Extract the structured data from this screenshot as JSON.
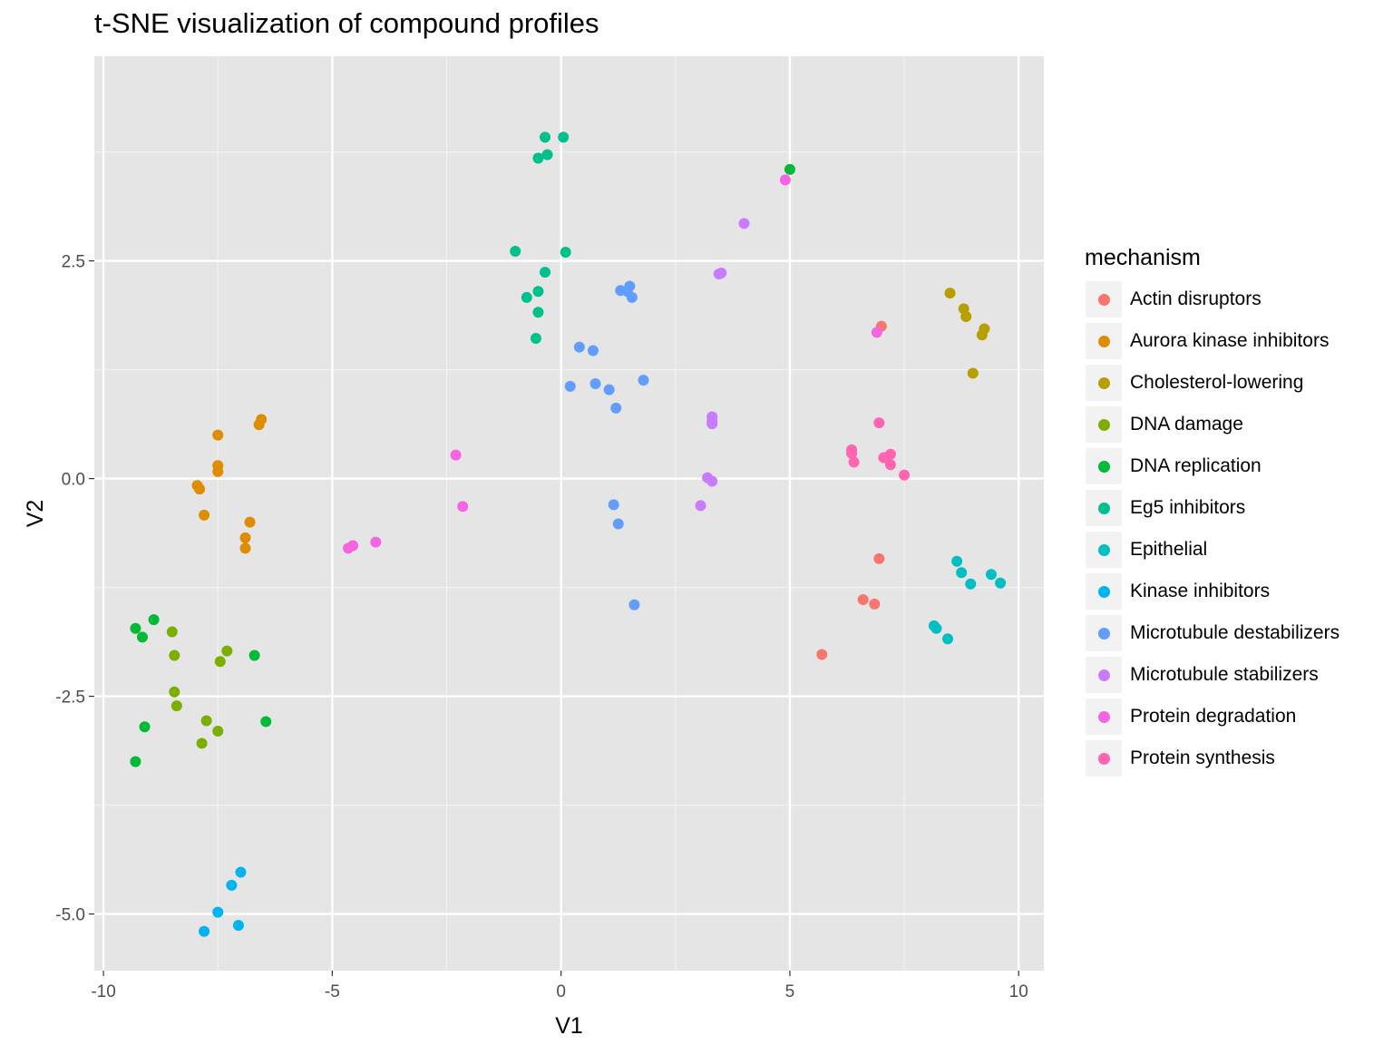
{
  "chart_data": {
    "type": "scatter",
    "title": "t-SNE visualization of compound profiles",
    "xlabel": "V1",
    "ylabel": "V2",
    "xlim": [
      -10.2,
      10.55
    ],
    "ylim": [
      -5.65,
      4.85
    ],
    "x_ticks": [
      -10,
      -5,
      0,
      5,
      10
    ],
    "x_tick_labels": [
      "-10",
      "-5",
      "0",
      "5",
      "10"
    ],
    "y_ticks": [
      -5.0,
      -2.5,
      0.0,
      2.5
    ],
    "y_tick_labels": [
      "-5.0",
      "-2.5",
      "0.0",
      "2.5"
    ],
    "grid": true,
    "legend_title": "mechanism",
    "legend_position": "right",
    "series": [
      {
        "name": "Actin disruptors",
        "color": "#F8766D",
        "points": [
          [
            7.0,
            1.75
          ],
          [
            6.95,
            -0.92
          ],
          [
            6.6,
            -1.39
          ],
          [
            6.85,
            -1.44
          ],
          [
            5.7,
            -2.02
          ]
        ]
      },
      {
        "name": "Aurora kinase inhibitors",
        "color": "#DE8C00",
        "points": [
          [
            -6.55,
            0.68
          ],
          [
            -6.6,
            0.62
          ],
          [
            -7.5,
            0.5
          ],
          [
            -7.5,
            0.15
          ],
          [
            -7.5,
            0.08
          ],
          [
            -7.95,
            -0.08
          ],
          [
            -7.9,
            -0.12
          ],
          [
            -7.8,
            -0.42
          ],
          [
            -6.8,
            -0.5
          ],
          [
            -6.9,
            -0.68
          ],
          [
            -6.9,
            -0.8
          ]
        ]
      },
      {
        "name": "Cholesterol-lowering",
        "color": "#B79F00",
        "points": [
          [
            8.5,
            2.13
          ],
          [
            8.8,
            1.95
          ],
          [
            8.85,
            1.86
          ],
          [
            9.25,
            1.72
          ],
          [
            9.2,
            1.65
          ],
          [
            9.0,
            1.21
          ]
        ]
      },
      {
        "name": "DNA damage",
        "color": "#7CAE00",
        "points": [
          [
            -8.5,
            -1.76
          ],
          [
            -8.45,
            -2.03
          ],
          [
            -7.3,
            -1.98
          ],
          [
            -7.45,
            -2.1
          ],
          [
            -8.45,
            -2.45
          ],
          [
            -8.4,
            -2.61
          ],
          [
            -7.75,
            -2.78
          ],
          [
            -7.5,
            -2.9
          ],
          [
            -7.85,
            -3.04
          ]
        ]
      },
      {
        "name": "DNA replication",
        "color": "#00BA38",
        "points": [
          [
            5.0,
            3.55
          ],
          [
            -9.3,
            -1.72
          ],
          [
            -9.15,
            -1.82
          ],
          [
            -8.9,
            -1.62
          ],
          [
            -6.7,
            -2.03
          ],
          [
            -9.1,
            -2.85
          ],
          [
            -6.45,
            -2.79
          ],
          [
            -9.3,
            -3.25
          ]
        ]
      },
      {
        "name": "Eg5 inhibitors",
        "color": "#00C08B",
        "points": [
          [
            -0.35,
            3.92
          ],
          [
            0.05,
            3.92
          ],
          [
            -0.3,
            3.72
          ],
          [
            -0.5,
            3.68
          ],
          [
            -1.0,
            2.61
          ],
          [
            0.1,
            2.6
          ],
          [
            -0.35,
            2.37
          ],
          [
            -0.5,
            2.15
          ],
          [
            -0.75,
            2.08
          ],
          [
            -0.5,
            1.91
          ],
          [
            -0.55,
            1.61
          ]
        ]
      },
      {
        "name": "Epithelial",
        "color": "#00BFC4",
        "points": [
          [
            8.65,
            -0.95
          ],
          [
            8.75,
            -1.08
          ],
          [
            9.4,
            -1.1
          ],
          [
            9.6,
            -1.2
          ],
          [
            8.95,
            -1.21
          ],
          [
            8.15,
            -1.69
          ],
          [
            8.2,
            -1.72
          ],
          [
            8.45,
            -1.84
          ]
        ]
      },
      {
        "name": "Kinase inhibitors",
        "color": "#00B4F0",
        "points": [
          [
            -7.0,
            -4.52
          ],
          [
            -7.2,
            -4.67
          ],
          [
            -7.5,
            -4.98
          ],
          [
            -7.05,
            -5.13
          ],
          [
            -7.8,
            -5.2
          ]
        ]
      },
      {
        "name": "Microtubule destabilizers",
        "color": "#619CFF",
        "points": [
          [
            1.5,
            2.21
          ],
          [
            1.3,
            2.16
          ],
          [
            1.45,
            2.15
          ],
          [
            1.55,
            2.08
          ],
          [
            0.4,
            1.51
          ],
          [
            0.7,
            1.47
          ],
          [
            1.8,
            1.13
          ],
          [
            0.2,
            1.06
          ],
          [
            0.75,
            1.09
          ],
          [
            1.05,
            1.02
          ],
          [
            1.2,
            0.81
          ],
          [
            1.15,
            -0.3
          ],
          [
            1.25,
            -0.52
          ],
          [
            1.6,
            -1.45
          ]
        ]
      },
      {
        "name": "Microtubule stabilizers",
        "color": "#C77CFF",
        "points": [
          [
            4.0,
            2.93
          ],
          [
            3.5,
            2.36
          ],
          [
            3.45,
            2.35
          ],
          [
            3.3,
            0.71
          ],
          [
            3.3,
            0.66
          ],
          [
            3.3,
            0.63
          ],
          [
            3.2,
            0.01
          ],
          [
            3.3,
            -0.03
          ],
          [
            3.05,
            -0.31
          ]
        ]
      },
      {
        "name": "Protein degradation",
        "color": "#F564E3",
        "points": [
          [
            4.9,
            3.43
          ],
          [
            6.9,
            1.68
          ],
          [
            -2.3,
            0.27
          ],
          [
            -2.15,
            -0.32
          ],
          [
            -4.05,
            -0.73
          ],
          [
            -4.55,
            -0.77
          ],
          [
            -4.65,
            -0.8
          ]
        ]
      },
      {
        "name": "Protein synthesis",
        "color": "#FF64B0",
        "points": [
          [
            6.95,
            0.64
          ],
          [
            6.35,
            0.33
          ],
          [
            6.35,
            0.29
          ],
          [
            7.2,
            0.28
          ],
          [
            7.05,
            0.24
          ],
          [
            7.1,
            0.24
          ],
          [
            6.4,
            0.19
          ],
          [
            7.2,
            0.16
          ],
          [
            7.5,
            0.04
          ]
        ]
      }
    ]
  }
}
